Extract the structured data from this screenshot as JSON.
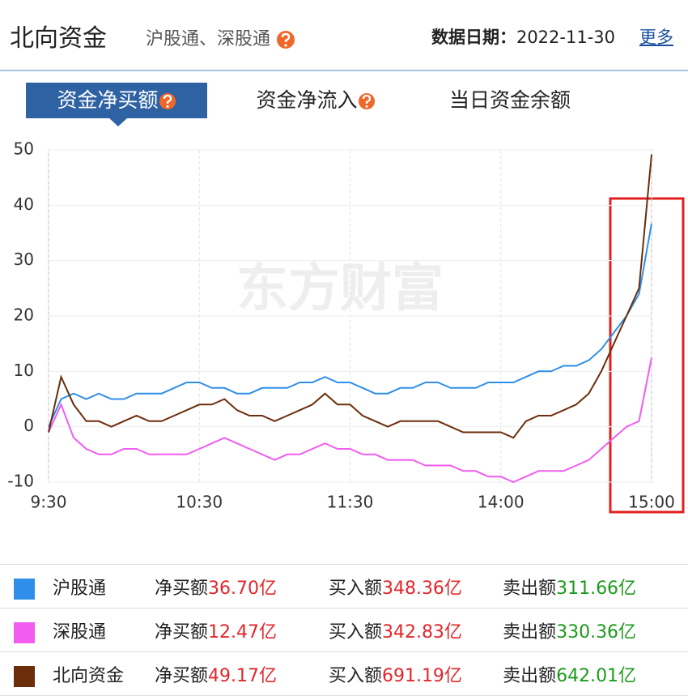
{
  "header": {
    "title": "北向资金",
    "subtitle": "沪股通、深股通",
    "date_label": "数据日期：",
    "date": "2022-11-30",
    "more": "更多"
  },
  "tabs": [
    "资金净买额",
    "资金净流入",
    "当日资金余额"
  ],
  "chart_data": {
    "type": "line",
    "watermark": "东方财富",
    "categories": [
      "9:30",
      null,
      null,
      null,
      null,
      null,
      null,
      null,
      null,
      null,
      null,
      null,
      "10:30",
      null,
      null,
      null,
      null,
      null,
      null,
      null,
      null,
      null,
      null,
      null,
      "11:30",
      null,
      null,
      null,
      null,
      null,
      null,
      null,
      null,
      null,
      null,
      null,
      "14:00",
      null,
      null,
      null,
      null,
      null,
      null,
      null,
      null,
      null,
      null,
      null,
      "15:00"
    ],
    "series": [
      {
        "name": "沪股通",
        "color": "#2f8fe8",
        "values": [
          0,
          5,
          6,
          5,
          6,
          5,
          5,
          6,
          6,
          6,
          7,
          8,
          8,
          7,
          7,
          6,
          6,
          7,
          7,
          7,
          8,
          8,
          9,
          8,
          8,
          7,
          6,
          6,
          7,
          7,
          8,
          8,
          7,
          7,
          7,
          8,
          8,
          8,
          9,
          10,
          10,
          11,
          11,
          12,
          14,
          17,
          20,
          24,
          36.7
        ]
      },
      {
        "name": "深股通",
        "color": "#f25cf0",
        "values": [
          -1,
          4,
          -2,
          -4,
          -5,
          -5,
          -4,
          -4,
          -5,
          -5,
          -5,
          -5,
          -4,
          -3,
          -2,
          -3,
          -4,
          -5,
          -6,
          -5,
          -5,
          -4,
          -3,
          -4,
          -4,
          -5,
          -5,
          -6,
          -6,
          -6,
          -7,
          -7,
          -7,
          -8,
          -8,
          -9,
          -9,
          -10,
          -9,
          -8,
          -8,
          -8,
          -7,
          -6,
          -4,
          -2,
          0,
          1,
          12.47
        ]
      },
      {
        "name": "北向资金",
        "color": "#6b2d0a",
        "values": [
          -1,
          9,
          4,
          1,
          1,
          0,
          1,
          2,
          1,
          1,
          2,
          3,
          4,
          4,
          5,
          3,
          2,
          2,
          1,
          2,
          3,
          4,
          6,
          4,
          4,
          2,
          1,
          0,
          1,
          1,
          1,
          1,
          0,
          -1,
          -1,
          -1,
          -1,
          -2,
          1,
          2,
          2,
          3,
          4,
          6,
          10,
          15,
          20,
          25,
          49.17
        ]
      }
    ],
    "ylim": [
      -10,
      50
    ],
    "yticks": [
      -10,
      0,
      10,
      20,
      30,
      40,
      50
    ],
    "grid": true
  },
  "summary": {
    "columns": [
      "净买额",
      "买入额",
      "卖出额"
    ],
    "rows": [
      [
        "36.70亿",
        "348.36亿",
        "311.66亿"
      ],
      [
        "12.47亿",
        "342.83亿",
        "330.36亿"
      ],
      [
        "49.17亿",
        "691.19亿",
        "642.01亿"
      ]
    ]
  }
}
